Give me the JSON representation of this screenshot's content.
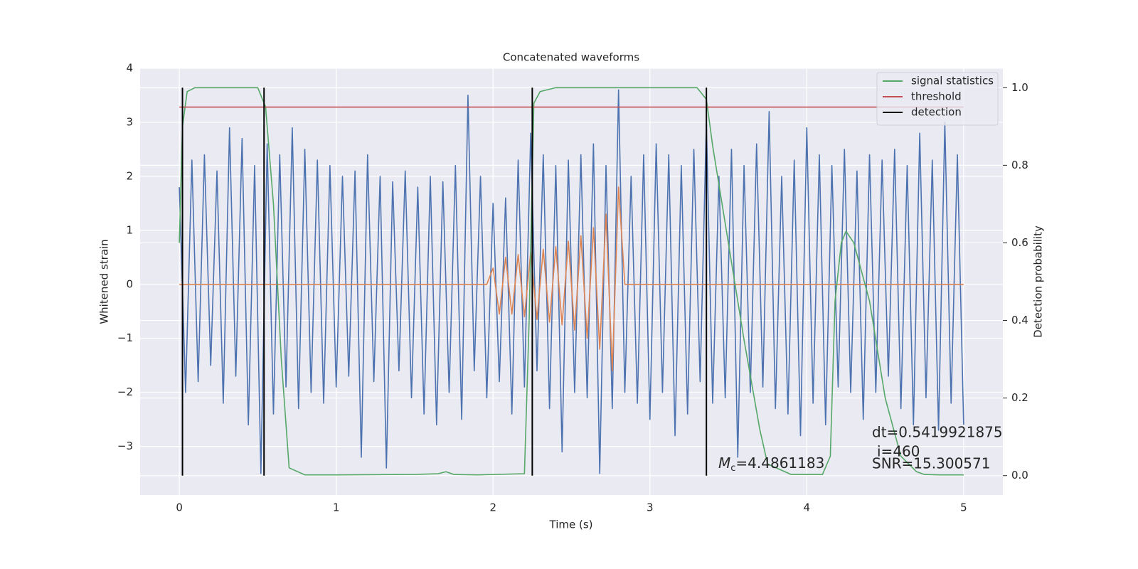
{
  "chart_data": {
    "type": "line",
    "title": "Concatenated waveforms",
    "xlabel": "Time (s)",
    "ylabel": "Whitened strain",
    "y2label": "Detection probability",
    "xlim": [
      -0.25,
      5.25
    ],
    "ylim": [
      -3.9,
      4.0
    ],
    "y2lim": [
      -0.05,
      1.05
    ],
    "xticks": [
      0,
      1,
      2,
      3,
      4,
      5
    ],
    "yticks": [
      {
        "value": -3,
        "label": "−3"
      },
      {
        "value": -2,
        "label": "−2"
      },
      {
        "value": -1,
        "label": "−1"
      },
      0,
      1,
      2,
      3,
      4
    ],
    "y2ticks": [
      {
        "value": 0,
        "label": "0.0"
      },
      {
        "value": 0.2,
        "label": "0.2"
      },
      {
        "value": 0.4,
        "label": "0.4"
      },
      {
        "value": 0.6,
        "label": "0.6"
      },
      {
        "value": 0.8,
        "label": "0.8"
      },
      {
        "value": 1,
        "label": "1.0"
      }
    ],
    "grid": true,
    "legend": "upper right",
    "x": [
      0,
      0.04,
      0.08,
      0.12,
      0.16,
      0.2,
      0.24,
      0.28,
      0.32,
      0.36,
      0.4,
      0.44,
      0.48,
      0.52,
      0.56,
      0.6,
      0.64,
      0.68,
      0.72,
      0.76,
      0.8,
      0.84,
      0.88,
      0.92,
      0.96,
      1,
      1.04,
      1.08,
      1.12,
      1.16,
      1.2,
      1.24,
      1.28,
      1.32,
      1.36,
      1.4,
      1.44,
      1.48,
      1.52,
      1.56,
      1.6,
      1.64,
      1.68,
      1.72,
      1.76,
      1.8,
      1.84,
      1.88,
      1.92,
      1.96,
      2,
      2.04,
      2.08,
      2.12,
      2.16,
      2.2,
      2.24,
      2.28,
      2.32,
      2.36,
      2.4,
      2.44,
      2.48,
      2.52,
      2.56,
      2.6,
      2.64,
      2.68,
      2.72,
      2.76,
      2.8,
      2.84,
      2.88,
      2.92,
      2.96,
      3,
      3.04,
      3.08,
      3.12,
      3.16,
      3.2,
      3.24,
      3.28,
      3.32,
      3.36,
      3.4,
      3.44,
      3.48,
      3.52,
      3.56,
      3.6,
      3.64,
      3.68,
      3.72,
      3.76,
      3.8,
      3.84,
      3.88,
      3.92,
      3.96,
      4,
      4.04,
      4.08,
      4.12,
      4.16,
      4.2,
      4.24,
      4.28,
      4.32,
      4.36,
      4.4,
      4.44,
      4.48,
      4.52,
      4.56,
      4.6,
      4.64,
      4.68,
      4.72,
      4.76,
      4.8,
      4.84,
      4.88,
      4.92,
      4.96,
      5
    ],
    "series": [
      {
        "color": "#4c72b0",
        "values": [
          1.8,
          -2.0,
          2.3,
          -1.8,
          2.4,
          -1.5,
          2.1,
          -2.2,
          2.9,
          -1.7,
          2.7,
          -2.6,
          2.2,
          -3.5,
          2.6,
          -2.4,
          2.4,
          -1.9,
          2.9,
          -2.3,
          2.5,
          -2.0,
          2.3,
          -2.2,
          2.2,
          -1.9,
          2.0,
          -1.7,
          2.1,
          -3.2,
          2.4,
          -1.8,
          2.0,
          -3.4,
          1.9,
          -1.6,
          2.1,
          -2.1,
          1.8,
          -2.4,
          2.0,
          -2.6,
          1.9,
          -2.0,
          2.2,
          -2.5,
          3.5,
          -1.6,
          2.0,
          -2.1,
          1.5,
          -1.8,
          1.6,
          -2.4,
          2.3,
          -1.9,
          2.8,
          -1.6,
          2.4,
          -2.3,
          2.2,
          -3.1,
          2.3,
          -2.0,
          2.4,
          -2.1,
          2.6,
          -3.5,
          2.2,
          -2.3,
          3.6,
          -2.0,
          2.0,
          -2.2,
          2.4,
          -2.5,
          2.6,
          -2.0,
          2.4,
          -2.8,
          2.2,
          -2.4,
          2.5,
          -1.8,
          3.0,
          -2.2,
          2.0,
          -2.1,
          2.5,
          -3.2,
          2.2,
          -2.0,
          2.6,
          -1.9,
          3.2,
          -2.3,
          2.0,
          -2.4,
          2.3,
          -2.8,
          2.9,
          -2.2,
          2.4,
          -2.6,
          2.2,
          -1.9,
          2.5,
          -2.0,
          2.1,
          -2.5,
          2.4,
          -2.0,
          2.3,
          -1.7,
          2.5,
          -2.3,
          2.2,
          -2.6,
          2.8,
          -2.1,
          2.3,
          -2.7,
          3.0,
          -2.2,
          2.4,
          -2.6
        ]
      },
      {
        "color": "#dd8452",
        "values": [
          0,
          0,
          0,
          0,
          0,
          0,
          0,
          0,
          0,
          0,
          0,
          0,
          0,
          0,
          0,
          0,
          0,
          0,
          0,
          0,
          0,
          0,
          0,
          0,
          0,
          0,
          0,
          0,
          0,
          0,
          0,
          0,
          0,
          0,
          0,
          0,
          0,
          0,
          0,
          0,
          0,
          0,
          0,
          0,
          0,
          0,
          0,
          0,
          0,
          0,
          0.3,
          -0.55,
          0.5,
          -0.55,
          0.55,
          -0.6,
          0.6,
          -0.65,
          0.65,
          -0.7,
          0.7,
          -0.75,
          0.8,
          -0.85,
          0.9,
          -1.0,
          1.05,
          -1.2,
          1.3,
          -1.6,
          1.8,
          0,
          0,
          0,
          0,
          0,
          0,
          0,
          0,
          0,
          0,
          0,
          0,
          0,
          0,
          0,
          0,
          0,
          0,
          0,
          0,
          0,
          0,
          0,
          0,
          0,
          0,
          0,
          0,
          0,
          0,
          0,
          0,
          0,
          0,
          0,
          0,
          0,
          0,
          0,
          0,
          0,
          0,
          0,
          0,
          0,
          0,
          0,
          0,
          0,
          0,
          0,
          0,
          0,
          0,
          0
        ]
      },
      {
        "name": "signal statistics",
        "color": "#55a868",
        "axis": "y2",
        "x": [
          0,
          0.02,
          0.05,
          0.1,
          0.5,
          0.55,
          0.6,
          0.65,
          0.7,
          0.8,
          1.0,
          1.5,
          1.65,
          1.7,
          1.75,
          1.9,
          2.2,
          2.23,
          2.26,
          2.3,
          2.4,
          2.6,
          3.3,
          3.36,
          3.4,
          3.5,
          3.6,
          3.7,
          3.75,
          3.9,
          4.1,
          4.15,
          4.18,
          4.22,
          4.25,
          4.3,
          4.4,
          4.5,
          4.6,
          4.7,
          4.75,
          4.85,
          5.0
        ],
        "values": [
          0.6,
          0.9,
          0.99,
          1.0,
          1.0,
          0.95,
          0.7,
          0.3,
          0.02,
          0.002,
          0.002,
          0.003,
          0.005,
          0.01,
          0.003,
          0.002,
          0.005,
          0.4,
          0.96,
          0.99,
          1.0,
          1.0,
          1.0,
          0.97,
          0.85,
          0.6,
          0.35,
          0.12,
          0.03,
          0.003,
          0.003,
          0.05,
          0.45,
          0.6,
          0.63,
          0.6,
          0.45,
          0.2,
          0.05,
          0.01,
          0.003,
          0.002,
          0.002
        ]
      },
      {
        "name": "threshold",
        "color": "#c44e52",
        "axis": "y2",
        "x": [
          0,
          5
        ],
        "values": [
          0.95,
          0.95
        ]
      },
      {
        "name": "detection",
        "color": "#000000",
        "axis": "y2",
        "style": "vlines",
        "x": [
          0.02,
          0.54,
          2.25,
          3.36
        ],
        "values": [
          1,
          1,
          1,
          1
        ]
      }
    ],
    "annotations": {
      "dt": "dt=0.5419921875",
      "i": "i=460",
      "snr": "SNR=15.300571",
      "mc_symbol": "M",
      "mc_subscript": "c",
      "mc_value": "=4.4861183"
    }
  }
}
